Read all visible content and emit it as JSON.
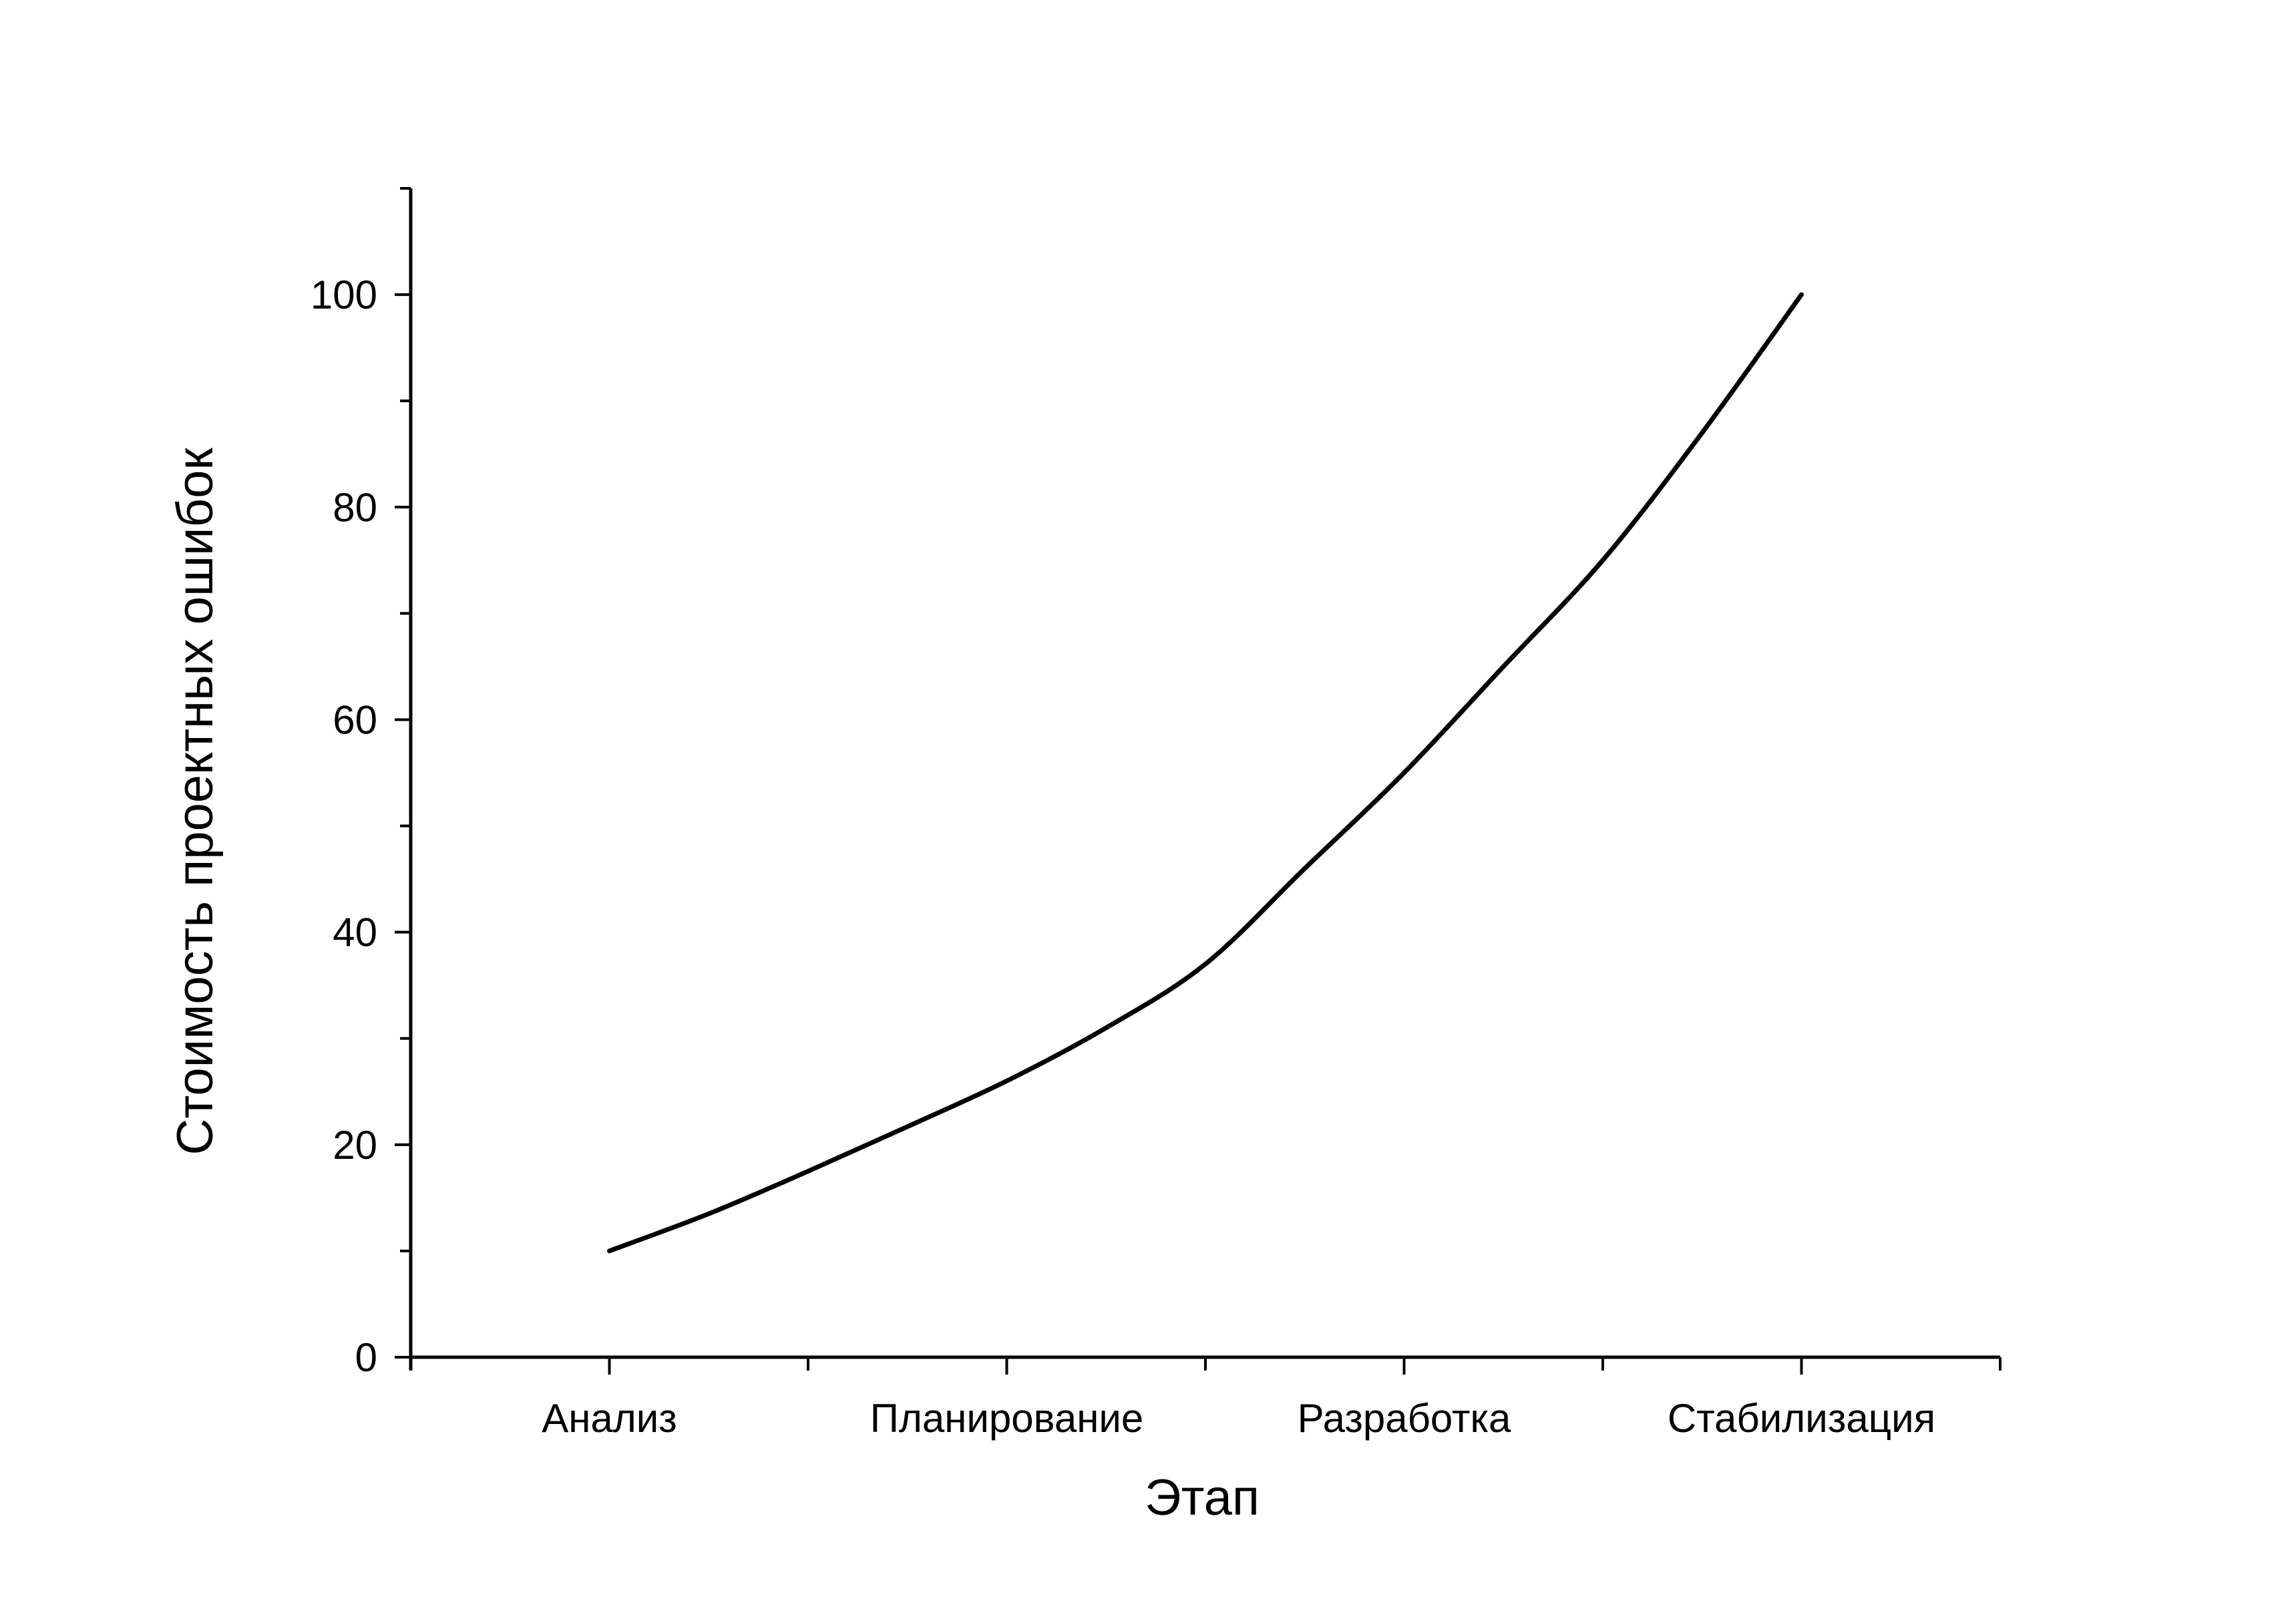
{
  "chart_data": {
    "type": "line",
    "xlabel": "Этап",
    "ylabel": "Стоимость проектных ошибок",
    "categories": [
      "Анализ",
      "Планирование",
      "Разработка",
      "Стабилизация"
    ],
    "series": [
      {
        "x": [
          1,
          1.25,
          1.5,
          1.75,
          2,
          2.25,
          2.5,
          2.75,
          3,
          3.25,
          3.5,
          3.75,
          4
        ],
        "values": [
          10,
          13.5,
          17.5,
          21.7,
          26,
          31,
          37,
          46,
          55,
          65,
          75,
          87,
          100
        ]
      }
    ],
    "xlim": [
      0.5,
      4.5
    ],
    "ylim": [
      0,
      110
    ],
    "y_ticks": [
      "0",
      "20",
      "40",
      "60",
      "80",
      "100"
    ],
    "grid": false,
    "legend": "none",
    "line_color": "#000000"
  }
}
